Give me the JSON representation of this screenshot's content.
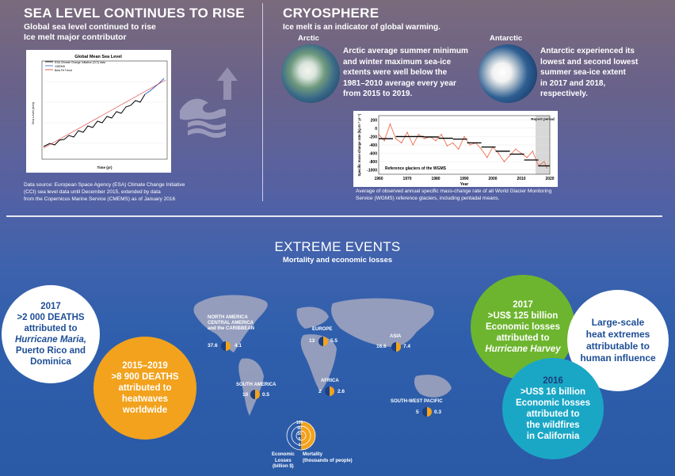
{
  "sea_level": {
    "title": "SEA LEVEL CONTINUES TO RISE",
    "subtitle_1": "Global sea level continued to rise",
    "subtitle_2": "Ice melt major contributor",
    "chart_title": "Global Mean Sea Level",
    "legend": [
      "ESA Climate Change Initiative (CCI) data",
      "CMEMS",
      "Best Fit Trend"
    ],
    "ylabel": "Sea Level (mm)",
    "xlabel": "Time (yr)",
    "source_1": "Data source: European Space Agency (ESA) Climate Change Initiative",
    "source_2": "(CCI) sea level data until December 2015, extended by data",
    "source_3": "from the Copernicus Marine Service (CMEMS) as of January 2016"
  },
  "cryosphere": {
    "title": "CRYOSPHERE",
    "subtitle": "Ice melt is an indicator of global warming.",
    "arctic_label": "Arctic",
    "arctic_text": [
      "Arctic average summer minimum",
      "and winter maximum sea-ice",
      "extents were well below the",
      "1981–2010 average every year",
      "from 2015 to 2019."
    ],
    "antarctic_label": "Antarctic",
    "antarctic_text": [
      "Antarctic experienced its",
      "lowest and second lowest",
      "summer sea-ice extent",
      "in 2017 and 2018,",
      "respectively."
    ],
    "caption_1": "Average of observed annual specific mass-change rate of all World Glacier Monitoring",
    "caption_2": "Service (WGMS) reference glaciers, including pentadal means."
  },
  "chart_data": {
    "type": "line",
    "xlabel": "Year",
    "ylabel": "Specific mass-change rate (kg m⁻² yr⁻¹)",
    "annotation": "Reference glaciers of the WGMS",
    "report_label": "Report period",
    "x_ticks": [
      "1960",
      "1970",
      "1980",
      "1990",
      "2000",
      "2010",
      "2020"
    ],
    "y_ticks": [
      "200",
      "0",
      "-200",
      "-400",
      "-600",
      "-800",
      "-1000"
    ],
    "ylim": [
      -1100,
      300
    ],
    "xlim": [
      1960,
      2020
    ],
    "years": [
      1960,
      1962,
      1964,
      1966,
      1968,
      1970,
      1972,
      1974,
      1976,
      1978,
      1980,
      1982,
      1984,
      1986,
      1988,
      1990,
      1992,
      1994,
      1996,
      1998,
      2000,
      2002,
      2004,
      2006,
      2008,
      2010,
      2012,
      2014,
      2016,
      2018,
      2019
    ],
    "values": [
      -150,
      -300,
      100,
      -250,
      -350,
      -100,
      -400,
      -150,
      -250,
      -200,
      -300,
      -150,
      -420,
      -350,
      -500,
      -200,
      -400,
      -350,
      -500,
      -700,
      -450,
      -600,
      -800,
      -650,
      -500,
      -600,
      -700,
      -550,
      -900,
      -800,
      -950
    ],
    "pentadal": [
      [
        1960,
        1965,
        -250
      ],
      [
        1966,
        1971,
        -200
      ],
      [
        1971,
        1976,
        -200
      ],
      [
        1976,
        1981,
        -210
      ],
      [
        1981,
        1986,
        -240
      ],
      [
        1986,
        1991,
        -260
      ],
      [
        1991,
        1996,
        -350
      ],
      [
        1996,
        2001,
        -450
      ],
      [
        2001,
        2006,
        -550
      ],
      [
        2006,
        2011,
        -620
      ],
      [
        2011,
        2016,
        -760
      ],
      [
        2016,
        2020,
        -900
      ]
    ]
  },
  "extreme": {
    "title": "EXTREME EVENTS",
    "subtitle": "Mortality and economic losses",
    "maria": {
      "year": "2017",
      "line1": ">2 000 DEATHS",
      "line2": "attributed to",
      "line3": "Hurricane Maria,",
      "line4": "Puerto Rico and",
      "line5": "Dominica"
    },
    "deaths_2015": {
      "year": "2015–2019",
      "line1": ">8 900 DEATHS",
      "line2": "attributed to",
      "line3": "heatwaves",
      "line4": "worldwide"
    },
    "harvey": {
      "year": "2017",
      "line1": ">US$ 125 billion",
      "line2": "Economic losses",
      "line3": "attributed to",
      "line4": "Hurricane Harvey"
    },
    "heat": {
      "line1": "Large-scale",
      "line2": "heat extremes",
      "line3": "attributable to",
      "line4": "human influence"
    },
    "wildfire": {
      "year": "2016",
      "line1": ">US$ 16 billion",
      "line2": "Economic losses",
      "line3": "attributed to",
      "line4": "the wildfires",
      "line5": "in California"
    },
    "regions": {
      "na": {
        "name_1": "NORTH AMERICA",
        "name_2": "CENTRAL AMERICA",
        "name_3": "and the CARIBBEAN",
        "loss": "37.6",
        "mort": "4.1"
      },
      "eu": {
        "name": "EUROPE",
        "loss": "13",
        "mort": "5.5"
      },
      "as": {
        "name": "ASIA",
        "loss": "16.6",
        "mort": "7.4"
      },
      "sa": {
        "name": "SOUTH AMERICA",
        "loss": "10",
        "mort": "0.5"
      },
      "af": {
        "name": "AFRICA",
        "loss": "2",
        "mort": "2.6"
      },
      "swp": {
        "name": "SOUTH-WEST PACIFIC",
        "loss": "5",
        "mort": "0.3"
      }
    },
    "legend": {
      "scale": [
        "100",
        "50",
        "10",
        "5",
        "1"
      ],
      "loss_1": "Economic",
      "loss_2": "Losses",
      "loss_3": "(billion $)",
      "mort_1": "Mortality",
      "mort_2": "(thousands of people)"
    }
  }
}
